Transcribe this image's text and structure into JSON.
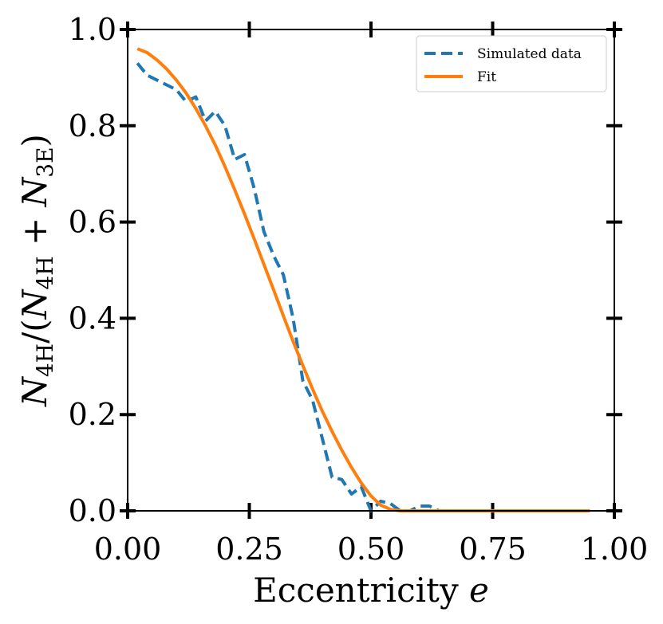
{
  "chart_data": {
    "type": "line",
    "title": "",
    "xlabel": "Eccentricity e",
    "xlabel_text": "Eccentricity ",
    "xlabel_var": "e",
    "ylabel": "N_4H/(N_4H + N_3E)",
    "ylabel_parts": {
      "N1": "N",
      "sub1": "4H",
      "mid": "/(",
      "N2": "N",
      "sub2": "4H",
      "plus": " + ",
      "N3": "N",
      "sub3": "3E",
      "close": ")"
    },
    "xlim": [
      0.0,
      1.0
    ],
    "ylim": [
      0.0,
      1.0
    ],
    "xticks": [
      0.0,
      0.25,
      0.5,
      0.75,
      1.0
    ],
    "xtick_labels": [
      "0.00",
      "0.25",
      "0.50",
      "0.75",
      "1.00"
    ],
    "yticks": [
      0.0,
      0.2,
      0.4,
      0.6,
      0.8,
      1.0
    ],
    "ytick_labels": [
      "0.0",
      "0.2",
      "0.4",
      "0.6",
      "0.8",
      "1.0"
    ],
    "legend_position": "top-right",
    "series": [
      {
        "name": "Simulated data",
        "color": "#1f77b4",
        "style": "dashed",
        "x": [
          0.02,
          0.04,
          0.06,
          0.08,
          0.1,
          0.12,
          0.14,
          0.16,
          0.18,
          0.2,
          0.22,
          0.24,
          0.26,
          0.28,
          0.3,
          0.32,
          0.34,
          0.36,
          0.38,
          0.4,
          0.42,
          0.44,
          0.46,
          0.48,
          0.5,
          0.52,
          0.54,
          0.56,
          0.58,
          0.6,
          0.62,
          0.64,
          0.66,
          0.7,
          0.75,
          0.8,
          0.85,
          0.9,
          0.95
        ],
        "y": [
          0.93,
          0.905,
          0.895,
          0.885,
          0.875,
          0.85,
          0.86,
          0.81,
          0.83,
          0.8,
          0.73,
          0.74,
          0.67,
          0.58,
          0.53,
          0.49,
          0.4,
          0.27,
          0.23,
          0.15,
          0.07,
          0.065,
          0.035,
          0.05,
          0.0,
          0.02,
          0.015,
          0.0,
          0.0,
          0.01,
          0.01,
          0.0,
          0.0,
          0.0,
          0.0,
          0.0,
          0.0,
          0.0,
          0.0
        ]
      },
      {
        "name": "Fit",
        "color": "#ff7f0e",
        "style": "solid",
        "x": [
          0.02,
          0.04,
          0.06,
          0.08,
          0.1,
          0.12,
          0.14,
          0.16,
          0.18,
          0.2,
          0.22,
          0.24,
          0.26,
          0.28,
          0.3,
          0.32,
          0.34,
          0.36,
          0.38,
          0.4,
          0.42,
          0.44,
          0.46,
          0.48,
          0.5,
          0.52,
          0.54,
          0.56,
          0.6,
          0.65,
          0.7,
          0.75,
          0.8,
          0.85,
          0.9,
          0.95
        ],
        "y": [
          0.96,
          0.952,
          0.937,
          0.918,
          0.895,
          0.868,
          0.836,
          0.8,
          0.76,
          0.715,
          0.667,
          0.617,
          0.565,
          0.512,
          0.459,
          0.405,
          0.352,
          0.302,
          0.253,
          0.207,
          0.165,
          0.126,
          0.09,
          0.058,
          0.031,
          0.012,
          0.003,
          0.0,
          0.0,
          0.0,
          0.0,
          0.0,
          0.0,
          0.0,
          0.0,
          0.0
        ]
      }
    ]
  }
}
